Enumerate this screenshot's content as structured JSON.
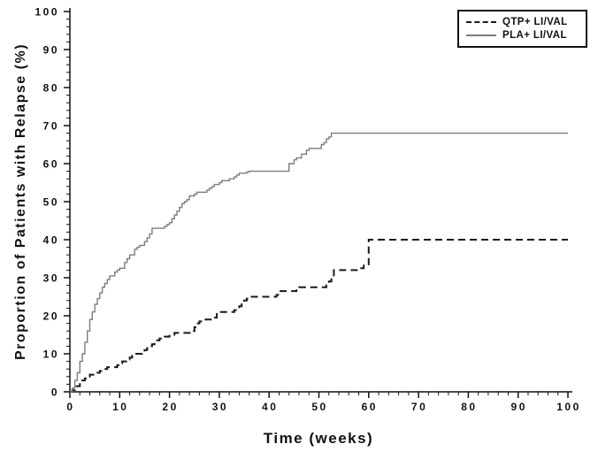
{
  "chart_data": {
    "type": "line",
    "subtype": "kaplan-meier-step",
    "title": "",
    "xlabel": "Time (weeks)",
    "ylabel": "Proportion of Patients with Relapse (%)",
    "xlim": [
      0,
      100
    ],
    "ylim": [
      0,
      100
    ],
    "x_ticks": [
      0,
      10,
      20,
      30,
      40,
      50,
      60,
      70,
      80,
      90,
      100
    ],
    "y_ticks": [
      0,
      10,
      20,
      30,
      40,
      50,
      60,
      70,
      80,
      90,
      100
    ],
    "minor_tick_interval": 2,
    "grid": false,
    "axis_color": "#111111",
    "legend": {
      "position": "top-right",
      "entries": [
        {
          "label": "QTP+ LI/VAL",
          "style": "dashed",
          "color": "#1a1a1a"
        },
        {
          "label": "PLA+ LI/VAL",
          "style": "solid",
          "color": "#7d7d7d"
        }
      ]
    },
    "series": [
      {
        "name": "QTP+ LI/VAL",
        "style": "dashed",
        "color": "#1a1a1a",
        "final_value": 40,
        "points": [
          [
            0,
            0
          ],
          [
            0.5,
            0.5
          ],
          [
            1,
            1.5
          ],
          [
            2,
            2.5
          ],
          [
            2.5,
            3
          ],
          [
            3,
            3.5
          ],
          [
            3.5,
            4
          ],
          [
            4,
            4.5
          ],
          [
            5.5,
            5
          ],
          [
            6,
            5.5
          ],
          [
            6.5,
            6
          ],
          [
            7.5,
            6.5
          ],
          [
            9.5,
            7
          ],
          [
            10,
            7.5
          ],
          [
            10.5,
            8
          ],
          [
            11.5,
            8.5
          ],
          [
            12,
            9
          ],
          [
            12.5,
            9.5
          ],
          [
            13,
            10
          ],
          [
            14.5,
            10.5
          ],
          [
            15,
            11
          ],
          [
            15.5,
            11.5
          ],
          [
            16,
            12
          ],
          [
            16.5,
            12.5
          ],
          [
            17,
            13
          ],
          [
            17.5,
            13.5
          ],
          [
            18,
            14
          ],
          [
            19,
            14.5
          ],
          [
            20,
            15
          ],
          [
            21,
            15.5
          ],
          [
            24.5,
            16
          ],
          [
            25,
            17
          ],
          [
            25.5,
            18
          ],
          [
            26,
            18.5
          ],
          [
            27,
            19
          ],
          [
            28.5,
            19.5
          ],
          [
            29.5,
            20.5
          ],
          [
            30,
            21
          ],
          [
            33,
            21.5
          ],
          [
            33.5,
            22
          ],
          [
            34,
            22.5
          ],
          [
            34.5,
            23
          ],
          [
            35,
            24
          ],
          [
            35.5,
            24.5
          ],
          [
            36,
            25
          ],
          [
            41.5,
            25.5
          ],
          [
            42,
            26.5
          ],
          [
            45.5,
            27
          ],
          [
            46,
            27.5
          ],
          [
            51.5,
            28
          ],
          [
            52,
            29
          ],
          [
            52.5,
            30
          ],
          [
            53,
            32
          ],
          [
            58,
            32.5
          ],
          [
            59,
            33.5
          ],
          [
            60,
            40
          ],
          [
            100,
            40
          ]
        ]
      },
      {
        "name": "PLA+ LI/VAL",
        "style": "solid",
        "color": "#7d7d7d",
        "final_value": 68,
        "points": [
          [
            0,
            0
          ],
          [
            0.5,
            1
          ],
          [
            1,
            3
          ],
          [
            1.5,
            5
          ],
          [
            2,
            8
          ],
          [
            2.5,
            10
          ],
          [
            3,
            13
          ],
          [
            3.5,
            16
          ],
          [
            4,
            19
          ],
          [
            4.5,
            21
          ],
          [
            5,
            23
          ],
          [
            5.5,
            24.5
          ],
          [
            6,
            26
          ],
          [
            6.5,
            27.5
          ],
          [
            7,
            28.5
          ],
          [
            7.5,
            29.5
          ],
          [
            8,
            30.5
          ],
          [
            9,
            31.5
          ],
          [
            9.5,
            32
          ],
          [
            10,
            32.5
          ],
          [
            11,
            34
          ],
          [
            11.5,
            35
          ],
          [
            12,
            36
          ],
          [
            13,
            37.5
          ],
          [
            13.5,
            38
          ],
          [
            14,
            38.5
          ],
          [
            15,
            39.5
          ],
          [
            15.5,
            40.5
          ],
          [
            16,
            41.5
          ],
          [
            16.5,
            43
          ],
          [
            19,
            43.5
          ],
          [
            19.5,
            44
          ],
          [
            20,
            44.5
          ],
          [
            20.5,
            45.5
          ],
          [
            21,
            46.5
          ],
          [
            21.5,
            47.5
          ],
          [
            22,
            48.5
          ],
          [
            22.5,
            49.5
          ],
          [
            23,
            50
          ],
          [
            23.5,
            50.5
          ],
          [
            24,
            51.5
          ],
          [
            25,
            52
          ],
          [
            25.5,
            52.5
          ],
          [
            27.5,
            53
          ],
          [
            28,
            53.5
          ],
          [
            28.5,
            54
          ],
          [
            29,
            54.5
          ],
          [
            30,
            55
          ],
          [
            30.5,
            55.5
          ],
          [
            32,
            56
          ],
          [
            33,
            56.5
          ],
          [
            33.5,
            57
          ],
          [
            34,
            57.5
          ],
          [
            35.5,
            57.8
          ],
          [
            36,
            58
          ],
          [
            44,
            60
          ],
          [
            45,
            61
          ],
          [
            45.5,
            61.5
          ],
          [
            46.5,
            62.5
          ],
          [
            47.5,
            63.5
          ],
          [
            48,
            64
          ],
          [
            50.5,
            65
          ],
          [
            51,
            65.5
          ],
          [
            51.5,
            66.5
          ],
          [
            52,
            67
          ],
          [
            52.5,
            68
          ],
          [
            100,
            68
          ]
        ]
      }
    ]
  }
}
